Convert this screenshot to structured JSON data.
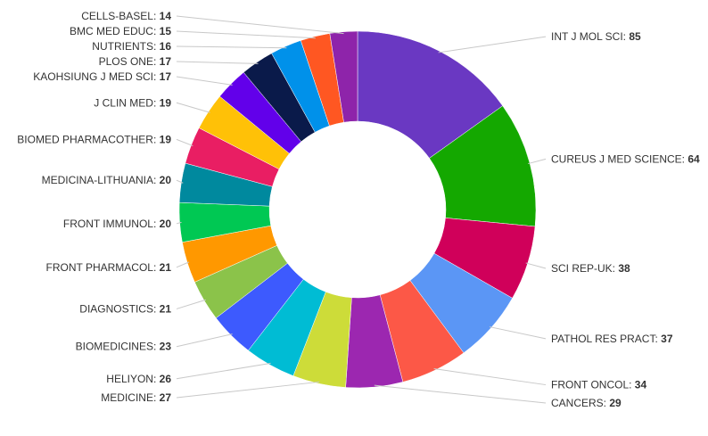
{
  "chart_data": {
    "type": "pie",
    "variant": "donut",
    "title": "",
    "legend": "none",
    "label_style": "outside labels with leader lines, category name followed by bold value",
    "slices": [
      {
        "label": "INT J MOL SCI",
        "value": 85,
        "color": "#6a38c2"
      },
      {
        "label": "CUREUS J MED SCIENCE",
        "value": 64,
        "color": "#14a800"
      },
      {
        "label": "SCI REP-UK",
        "value": 38,
        "color": "#d0005a"
      },
      {
        "label": "PATHOL RES PRACT",
        "value": 37,
        "color": "#5b96f5"
      },
      {
        "label": "FRONT ONCOL",
        "value": 34,
        "color": "#fc5847"
      },
      {
        "label": "CANCERS",
        "value": 29,
        "color": "#9c27b0"
      },
      {
        "label": "MEDICINE",
        "value": 27,
        "color": "#cddc39"
      },
      {
        "label": "HELIYON",
        "value": 26,
        "color": "#00bcd4"
      },
      {
        "label": "BIOMEDICINES",
        "value": 23,
        "color": "#3d5afe"
      },
      {
        "label": "DIAGNOSTICS",
        "value": 21,
        "color": "#8bc34a"
      },
      {
        "label": "FRONT PHARMACOL",
        "value": 21,
        "color": "#ff9800"
      },
      {
        "label": "FRONT IMMUNOL",
        "value": 20,
        "color": "#00c853"
      },
      {
        "label": "MEDICINA-LITHUANIA",
        "value": 20,
        "color": "#00899e"
      },
      {
        "label": "BIOMED PHARMACOTHER",
        "value": 19,
        "color": "#e91e63"
      },
      {
        "label": "J CLIN MED",
        "value": 19,
        "color": "#ffc107"
      },
      {
        "label": "KAOHSIUNG J MED SCI",
        "value": 17,
        "color": "#6200ea"
      },
      {
        "label": "PLOS ONE",
        "value": 17,
        "color": "#0a1a4a"
      },
      {
        "label": "NUTRIENTS",
        "value": 16,
        "color": "#0091ea"
      },
      {
        "label": "BMC MED EDUC",
        "value": 15,
        "color": "#ff5722"
      },
      {
        "label": "CELLS-BASEL",
        "value": 14,
        "color": "#8e24aa"
      }
    ]
  }
}
